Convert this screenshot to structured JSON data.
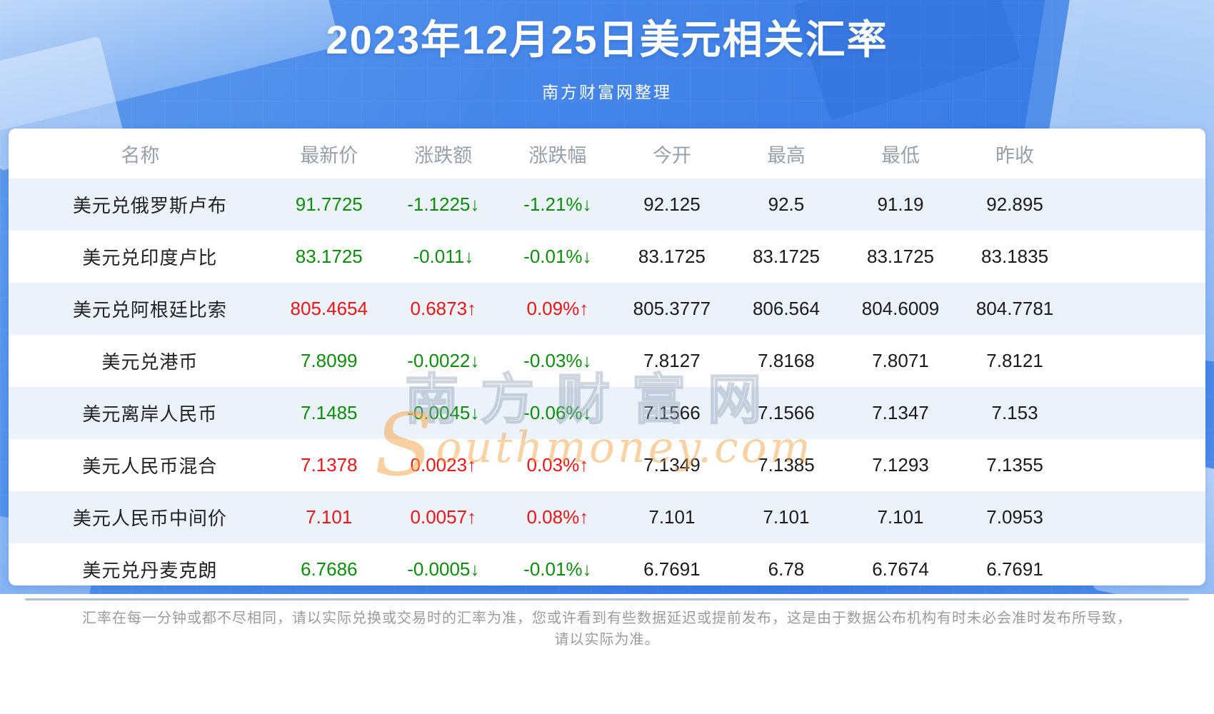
{
  "header": {
    "title": "2023年12月25日美元相关汇率",
    "subtitle": "南方财富网整理"
  },
  "table": {
    "columns": [
      "名称",
      "最新价",
      "涨跌额",
      "涨跌幅",
      "今开",
      "最高",
      "最低",
      "昨收"
    ],
    "rows": [
      {
        "name": "美元兑俄罗斯卢布",
        "latest": "91.7725",
        "change": "-1.1225↓",
        "change_pct": "-1.21%↓",
        "open": "92.125",
        "high": "92.5",
        "low": "91.19",
        "prev_close": "92.895",
        "trend": "down"
      },
      {
        "name": "美元兑印度卢比",
        "latest": "83.1725",
        "change": "-0.011↓",
        "change_pct": "-0.01%↓",
        "open": "83.1725",
        "high": "83.1725",
        "low": "83.1725",
        "prev_close": "83.1835",
        "trend": "down"
      },
      {
        "name": "美元兑阿根廷比索",
        "latest": "805.4654",
        "change": "0.6873↑",
        "change_pct": "0.09%↑",
        "open": "805.3777",
        "high": "806.564",
        "low": "804.6009",
        "prev_close": "804.7781",
        "trend": "up"
      },
      {
        "name": "美元兑港币",
        "latest": "7.8099",
        "change": "-0.0022↓",
        "change_pct": "-0.03%↓",
        "open": "7.8127",
        "high": "7.8168",
        "low": "7.8071",
        "prev_close": "7.8121",
        "trend": "down"
      },
      {
        "name": "美元离岸人民币",
        "latest": "7.1485",
        "change": "-0.0045↓",
        "change_pct": "-0.06%↓",
        "open": "7.1566",
        "high": "7.1566",
        "low": "7.1347",
        "prev_close": "7.153",
        "trend": "down"
      },
      {
        "name": "美元人民币混合",
        "latest": "7.1378",
        "change": "0.0023↑",
        "change_pct": "0.03%↑",
        "open": "7.1349",
        "high": "7.1385",
        "low": "7.1293",
        "prev_close": "7.1355",
        "trend": "up"
      },
      {
        "name": "美元人民币中间价",
        "latest": "7.101",
        "change": "0.0057↑",
        "change_pct": "0.08%↑",
        "open": "7.101",
        "high": "7.101",
        "low": "7.101",
        "prev_close": "7.0953",
        "trend": "up"
      },
      {
        "name": "美元兑丹麦克朗",
        "latest": "6.7686",
        "change": "-0.0005↓",
        "change_pct": "-0.01%↓",
        "open": "6.7691",
        "high": "6.78",
        "low": "6.7674",
        "prev_close": "6.7691",
        "trend": "down"
      }
    ]
  },
  "watermark": {
    "cn": "南方财富网",
    "en_first_letter": "S",
    "en_rest": "outhmoney.com"
  },
  "footer": {
    "line1": "汇率在每一分钟或都不尽相同，请以实际兑换或交易时的汇率为准，您或许看到有些数据延迟或提前发布，这是由于数据公布机构有时未必会准时发布所导致，",
    "line2": "请以实际为准。"
  },
  "colors": {
    "up": "#f01414",
    "down": "#0a9008",
    "row_alt": "#ebf2fa",
    "hero_blue": "#4486e9"
  }
}
